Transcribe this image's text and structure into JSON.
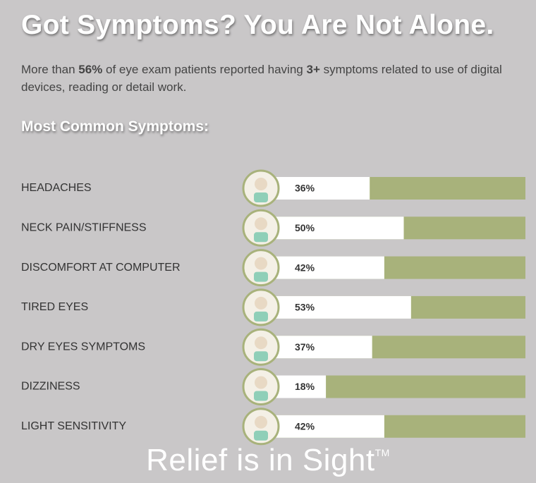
{
  "chart_data": {
    "type": "bar",
    "title": "Got Symptoms? You Are Not Alone.",
    "subtitle": [
      "More than ",
      "56%",
      " of eye exam patients reported having ",
      "3+",
      " symptoms related to use of digital devices, reading or detail work."
    ],
    "section_title": "Most Common Symptoms:",
    "footer": "Relief is in Sight",
    "footer_mark": "TM",
    "categories": [
      "HEADACHES",
      "NECK PAIN/STIFFNESS",
      "DISCOMFORT AT COMPUTER",
      "TIRED EYES",
      "DRY EYES SYMPTOMS",
      "DIZZINESS",
      "LIGHT SENSITIVITY"
    ],
    "values": [
      36,
      50,
      42,
      53,
      37,
      18,
      42
    ],
    "value_labels": [
      "36%",
      "50%",
      "42%",
      "53%",
      "37%",
      "18%",
      "42%"
    ],
    "xlim": [
      0,
      100
    ],
    "color": "#ffffff",
    "track_color": "#a8b27b"
  }
}
